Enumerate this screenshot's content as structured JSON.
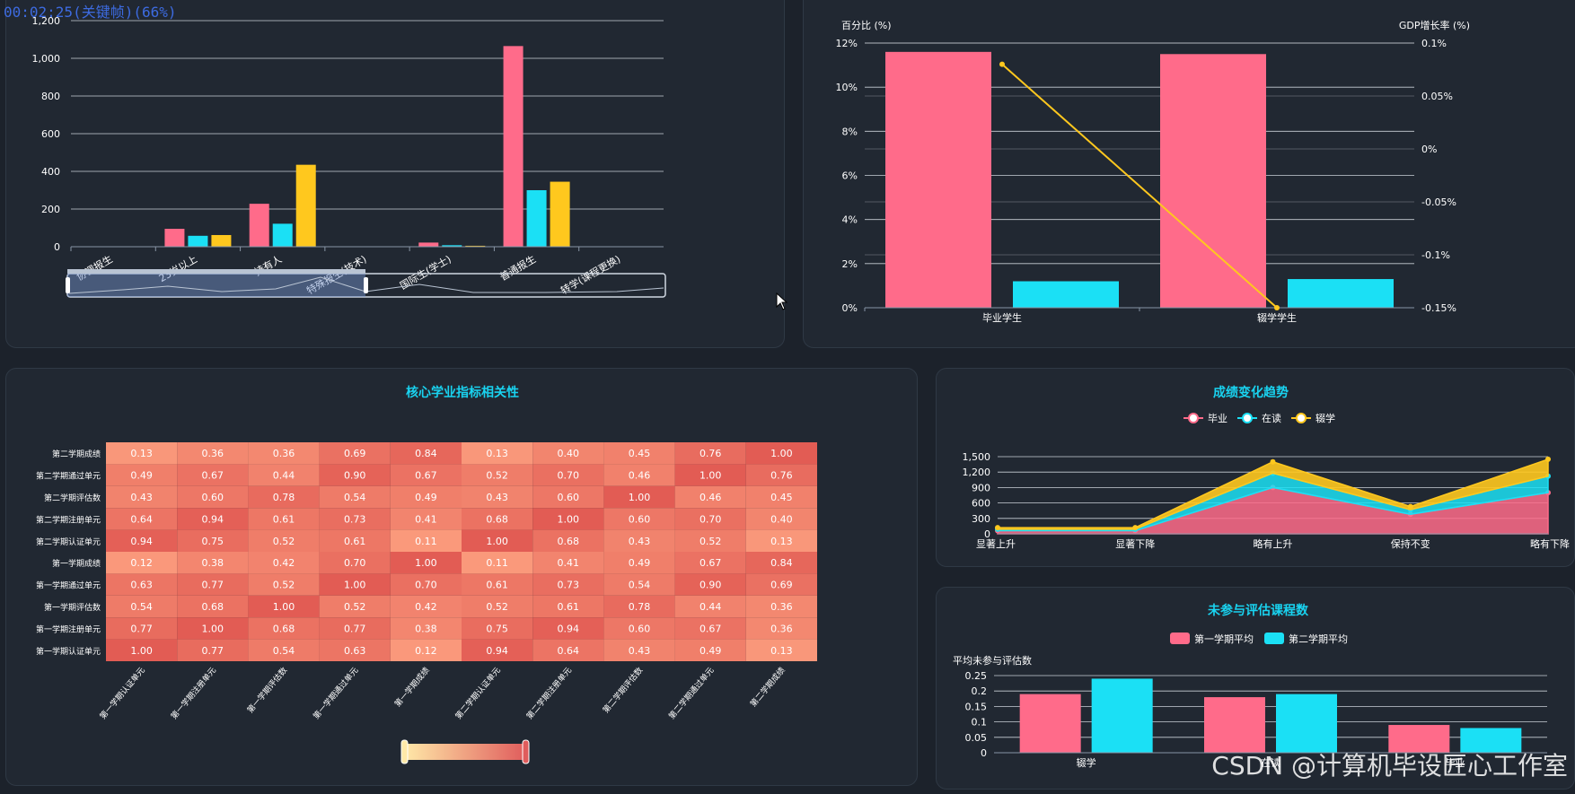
{
  "overlay": {
    "timestamp": "00:02:25(关键帧)(66%)"
  },
  "watermark": "CSDN @计算机毕设匠心工作室",
  "colors": {
    "pink": "#ff6b8a",
    "cyan": "#1be0f5",
    "yellow": "#ffc81e",
    "panel": "#212832",
    "bg": "#1c222b",
    "title": "#19d3f0"
  },
  "bar_panel": {
    "chart_data": {
      "type": "bar",
      "ylim": [
        0,
        1200
      ],
      "yticks": [
        "0",
        "200",
        "400",
        "600",
        "800",
        "1,000",
        "1,200"
      ],
      "categories": [
        "协调报生",
        "23岁以上",
        "持有人",
        "特殊报生(技术)",
        "国际生(学士)",
        "普通报生",
        "转学(课程更换)"
      ],
      "series": [
        {
          "values": [
            0,
            95,
            228,
            0,
            22,
            1065,
            0
          ]
        },
        {
          "values": [
            0,
            58,
            122,
            0,
            8,
            300,
            0
          ]
        },
        {
          "values": [
            2,
            62,
            435,
            0,
            5,
            345,
            0
          ]
        }
      ]
    }
  },
  "dual_panel": {
    "chart_data": {
      "type": "bar",
      "ylabel": "百分比 (%)",
      "ylabel_right": "GDP增长率 (%)",
      "ylim": [
        0,
        12
      ],
      "yticks": [
        "0%",
        "2%",
        "4%",
        "6%",
        "8%",
        "10%",
        "12%"
      ],
      "yticks_right": [
        "-0.15%",
        "-0.1%",
        "-0.05%",
        "0%",
        "0.05%",
        "0.1%"
      ],
      "ylim_right": [
        -0.15,
        0.1
      ],
      "categories": [
        "毕业学生",
        "辍学学生"
      ],
      "series": [
        {
          "type": "bar",
          "values": [
            11.6,
            11.5
          ]
        },
        {
          "type": "bar",
          "values": [
            1.2,
            1.3
          ]
        },
        {
          "type": "line",
          "values": [
            0.08,
            -0.15
          ]
        }
      ]
    }
  },
  "heatmap_panel": {
    "title": "核心学业指标相关性",
    "chart_data": {
      "type": "heatmap",
      "rows": [
        "第二学期成绩",
        "第二学期通过单元",
        "第二学期评估数",
        "第二学期注册单元",
        "第二学期认证单元",
        "第一学期成绩",
        "第一学期通过单元",
        "第一学期评估数",
        "第一学期注册单元",
        "第一学期认证单元"
      ],
      "columns": [
        "第一学期认证单元",
        "第一学期注册单元",
        "第一学期评估数",
        "第一学期通过单元",
        "第一学期成绩",
        "第二学期认证单元",
        "第二学期注册单元",
        "第二学期评估数",
        "第二学期通过单元",
        "第二学期成绩"
      ],
      "values": [
        [
          "0.13",
          "0.36",
          "0.36",
          "0.69",
          "0.84",
          "0.13",
          "0.40",
          "0.45",
          "0.76",
          "1.00"
        ],
        [
          "0.49",
          "0.67",
          "0.44",
          "0.90",
          "0.67",
          "0.52",
          "0.70",
          "0.46",
          "1.00",
          "0.76"
        ],
        [
          "0.43",
          "0.60",
          "0.78",
          "0.54",
          "0.49",
          "0.43",
          "0.60",
          "1.00",
          "0.46",
          "0.45"
        ],
        [
          "0.64",
          "0.94",
          "0.61",
          "0.73",
          "0.41",
          "0.68",
          "1.00",
          "0.60",
          "0.70",
          "0.40"
        ],
        [
          "0.94",
          "0.75",
          "0.52",
          "0.61",
          "0.11",
          "1.00",
          "0.68",
          "0.43",
          "0.52",
          "0.13"
        ],
        [
          "0.12",
          "0.38",
          "0.42",
          "0.70",
          "1.00",
          "0.11",
          "0.41",
          "0.49",
          "0.67",
          "0.84"
        ],
        [
          "0.63",
          "0.77",
          "0.52",
          "1.00",
          "0.70",
          "0.61",
          "0.73",
          "0.54",
          "0.90",
          "0.69"
        ],
        [
          "0.54",
          "0.68",
          "1.00",
          "0.52",
          "0.42",
          "0.52",
          "0.61",
          "0.78",
          "0.44",
          "0.36"
        ],
        [
          "0.77",
          "1.00",
          "0.68",
          "0.77",
          "0.38",
          "0.75",
          "0.94",
          "0.60",
          "0.67",
          "0.36"
        ],
        [
          "1.00",
          "0.77",
          "0.54",
          "0.63",
          "0.12",
          "0.94",
          "0.64",
          "0.43",
          "0.49",
          "0.13"
        ]
      ]
    }
  },
  "trend_panel": {
    "title": "成绩变化趋势",
    "legend": [
      "毕业",
      "在读",
      "辍学"
    ],
    "chart_data": {
      "type": "area",
      "categories": [
        "显著上升",
        "显著下降",
        "略有上升",
        "保持不变",
        "略有下降"
      ],
      "ylim": [
        0,
        1500
      ],
      "yticks": [
        "0",
        "300",
        "600",
        "900",
        "1,200",
        "1,500"
      ],
      "series": [
        {
          "name": "毕业",
          "values": [
            60,
            60,
            900,
            380,
            800
          ]
        },
        {
          "name": "在读",
          "values": [
            30,
            30,
            280,
            90,
            320
          ]
        },
        {
          "name": "辍学",
          "values": [
            30,
            30,
            220,
            60,
            330
          ]
        }
      ]
    }
  },
  "unassessed_panel": {
    "title": "未参与评估课程数",
    "legend": [
      "第一学期平均",
      "第二学期平均"
    ],
    "chart_data": {
      "type": "bar",
      "ylabel": "平均未参与评估数",
      "ylim": [
        0,
        0.25
      ],
      "yticks": [
        "0",
        "0.05",
        "0.1",
        "0.15",
        "0.2",
        "0.25"
      ],
      "categories": [
        "辍学",
        "在读",
        "毕业"
      ],
      "series": [
        {
          "name": "第一学期平均",
          "values": [
            0.19,
            0.18,
            0.09
          ]
        },
        {
          "name": "第二学期平均",
          "values": [
            0.24,
            0.19,
            0.08
          ]
        }
      ]
    }
  }
}
